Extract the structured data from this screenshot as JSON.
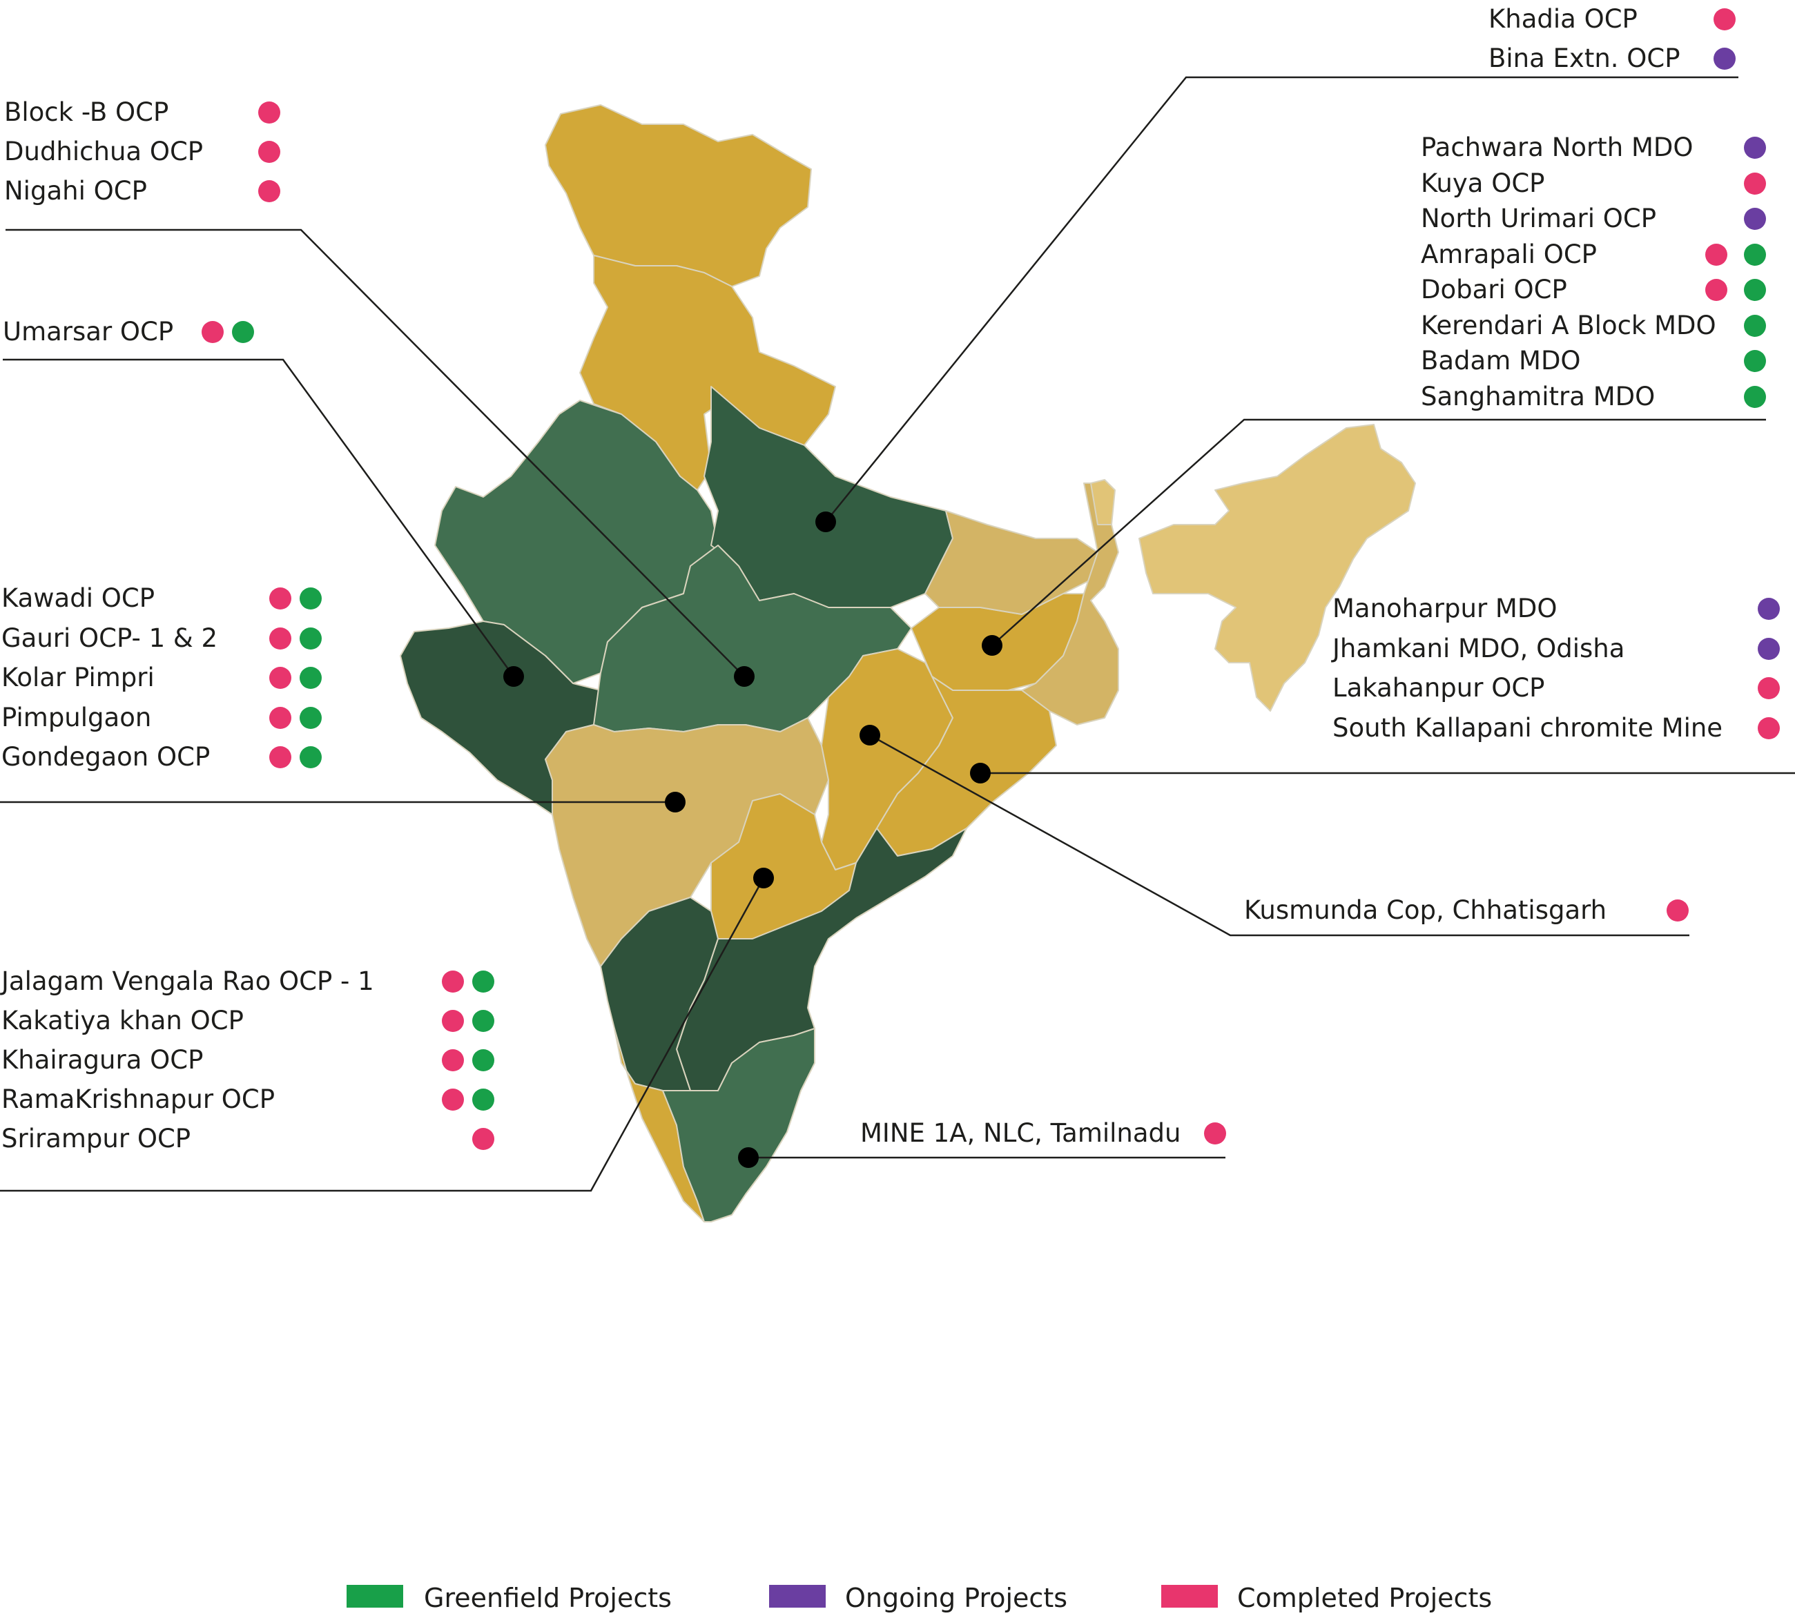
{
  "colors": {
    "greenfield": "#18a049",
    "ongoing": "#6a3ea1",
    "completed": "#e8356d",
    "state_dark_green": "#2f523b",
    "state_green": "#416f50",
    "state_mid_green": "#335d42",
    "state_gold": "#d2a838",
    "state_sand": "#d3b465",
    "state_light_sand": "#e1c477",
    "marker": "#000000"
  },
  "legend": [
    {
      "label": "Greenfield Projects",
      "color_key": "greenfield"
    },
    {
      "label": "Ongoing Projects",
      "color_key": "ongoing"
    },
    {
      "label": "Completed Projects",
      "color_key": "completed"
    }
  ],
  "groups": [
    {
      "id": "khadia",
      "items": [
        {
          "name": "Khadia OCP",
          "status": [
            "completed"
          ]
        },
        {
          "name": "Bina Extn. OCP",
          "status": [
            "ongoing"
          ]
        }
      ]
    },
    {
      "id": "nigahi",
      "items": [
        {
          "name": "Block -B OCP",
          "status": [
            "completed"
          ]
        },
        {
          "name": "Dudhichua OCP",
          "status": [
            "completed"
          ]
        },
        {
          "name": "Nigahi OCP",
          "status": [
            "completed"
          ]
        }
      ]
    },
    {
      "id": "jharkhand",
      "items": [
        {
          "name": "Pachwara North MDO",
          "status": [
            "ongoing"
          ]
        },
        {
          "name": "Kuya OCP",
          "status": [
            "completed"
          ]
        },
        {
          "name": "North Urimari OCP",
          "status": [
            "ongoing"
          ]
        },
        {
          "name": "Amrapali OCP",
          "status": [
            "completed",
            "greenfield"
          ]
        },
        {
          "name": "Dobari OCP",
          "status": [
            "completed",
            "greenfield"
          ]
        },
        {
          "name": "Kerendari A Block MDO",
          "status": [
            "greenfield"
          ]
        },
        {
          "name": "Badam MDO",
          "status": [
            "greenfield"
          ]
        },
        {
          "name": "Sanghamitra MDO",
          "status": [
            "greenfield"
          ]
        }
      ]
    },
    {
      "id": "umarsar",
      "items": [
        {
          "name": "Umarsar OCP",
          "status": [
            "completed",
            "greenfield"
          ]
        }
      ]
    },
    {
      "id": "maharashtra",
      "items": [
        {
          "name": "Kawadi OCP",
          "status": [
            "completed",
            "greenfield"
          ]
        },
        {
          "name": "Gauri OCP- 1 & 2",
          "status": [
            "completed",
            "greenfield"
          ]
        },
        {
          "name": "Kolar Pimpri",
          "status": [
            "completed",
            "greenfield"
          ]
        },
        {
          "name": "Pimpulgaon",
          "status": [
            "completed",
            "greenfield"
          ]
        },
        {
          "name": "Gondegaon OCP",
          "status": [
            "completed",
            "greenfield"
          ]
        }
      ]
    },
    {
      "id": "odisha",
      "items": [
        {
          "name": "Manoharpur MDO",
          "status": [
            "ongoing"
          ]
        },
        {
          "name": "Jhamkani MDO, Odisha",
          "status": [
            "ongoing"
          ]
        },
        {
          "name": "Lakahanpur OCP",
          "status": [
            "completed"
          ]
        },
        {
          "name": "South Kallapani chromite Mine",
          "status": [
            "completed"
          ]
        }
      ]
    },
    {
      "id": "kusmunda",
      "items": [
        {
          "name": "Kusmunda Cop, Chhatisgarh",
          "status": [
            "completed"
          ]
        }
      ]
    },
    {
      "id": "telangana",
      "items": [
        {
          "name": "Jalagam Vengala Rao OCP - 1",
          "status": [
            "completed",
            "greenfield"
          ]
        },
        {
          "name": "Kakatiya khan OCP",
          "status": [
            "completed",
            "greenfield"
          ]
        },
        {
          "name": "Khairagura OCP",
          "status": [
            "completed",
            "greenfield"
          ]
        },
        {
          "name": "RamaKrishnapur OCP",
          "status": [
            "completed",
            "greenfield"
          ]
        },
        {
          "name": "Srirampur OCP",
          "status": [
            "completed"
          ]
        }
      ]
    },
    {
      "id": "nlc",
      "items": [
        {
          "name": "MINE 1A, NLC, Tamilnadu",
          "status": [
            "completed"
          ]
        }
      ]
    }
  ]
}
